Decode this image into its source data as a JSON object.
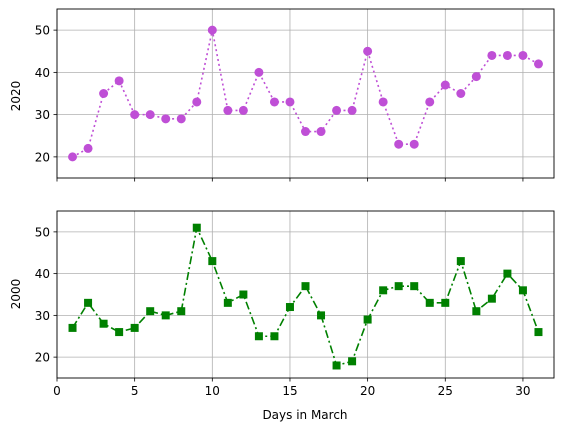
{
  "chart_data": [
    {
      "type": "line",
      "ylabel": "2020",
      "xlabel": "",
      "show_x_tick_labels": false,
      "x": [
        1,
        2,
        3,
        4,
        5,
        6,
        7,
        8,
        9,
        10,
        11,
        12,
        13,
        14,
        15,
        16,
        17,
        18,
        19,
        20,
        21,
        22,
        23,
        24,
        25,
        26,
        27,
        28,
        29,
        30,
        31
      ],
      "series": [
        {
          "values": [
            20,
            22,
            35,
            38,
            30,
            30,
            29,
            29,
            33,
            50,
            31,
            31,
            40,
            33,
            33,
            26,
            26,
            31,
            31,
            45,
            33,
            23,
            23,
            33,
            37,
            35,
            39,
            44,
            44,
            44,
            42
          ],
          "color": "#bf4fd6",
          "marker": "circle",
          "line_style": "dotted"
        }
      ],
      "xlim": [
        0,
        32
      ],
      "ylim": [
        15,
        55
      ],
      "xticks": [
        0,
        5,
        10,
        15,
        20,
        25,
        30
      ],
      "yticks": [
        20,
        30,
        40,
        50
      ],
      "grid": true
    },
    {
      "type": "line",
      "ylabel": "2000",
      "xlabel": "Days in March",
      "show_x_tick_labels": true,
      "x": [
        1,
        2,
        3,
        4,
        5,
        6,
        7,
        8,
        9,
        10,
        11,
        12,
        13,
        14,
        15,
        16,
        17,
        18,
        19,
        20,
        21,
        22,
        23,
        24,
        25,
        26,
        27,
        28,
        29,
        30,
        31
      ],
      "series": [
        {
          "values": [
            27,
            33,
            28,
            26,
            27,
            31,
            30,
            31,
            51,
            43,
            33,
            35,
            25,
            25,
            32,
            37,
            30,
            18,
            19,
            29,
            36,
            37,
            37,
            33,
            33,
            43,
            31,
            34,
            40,
            36,
            26
          ],
          "color": "#008000",
          "marker": "square",
          "line_style": "dashdot"
        }
      ],
      "xlim": [
        0,
        32
      ],
      "ylim": [
        15,
        55
      ],
      "xticks": [
        0,
        5,
        10,
        15,
        20,
        25,
        30
      ],
      "yticks": [
        20,
        30,
        40,
        50
      ],
      "grid": true
    }
  ]
}
